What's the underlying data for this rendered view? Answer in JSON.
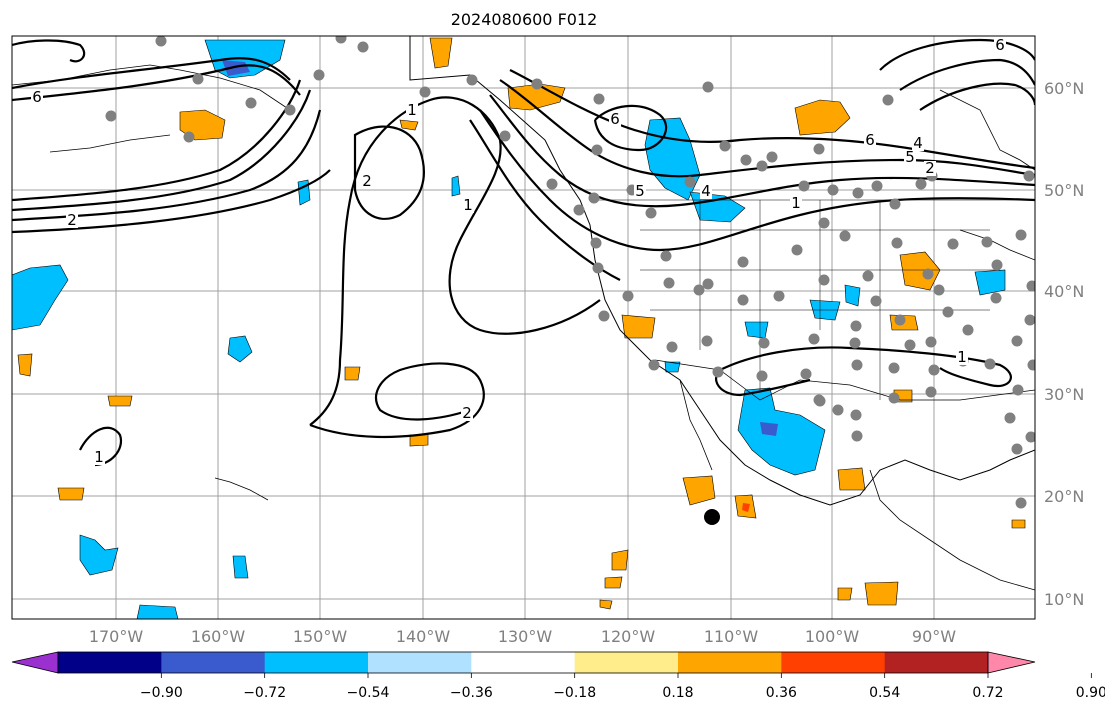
{
  "map": {
    "title": "2024080600 F012",
    "lat_labels": [
      "60°N",
      "50°N",
      "40°N",
      "30°N",
      "20°N",
      "10°N"
    ],
    "lon_labels": [
      "170°W",
      "160°W",
      "150°W",
      "140°W",
      "130°W",
      "120°W",
      "110°W",
      "100°W",
      "90°W"
    ],
    "contour_labels": [
      "6",
      "2",
      "1",
      "2",
      "1",
      "2",
      "1",
      "6",
      "5",
      "4",
      "6",
      "5",
      "4",
      "1",
      "2",
      "1",
      "6"
    ],
    "colorbar": {
      "tick_labels": [
        "−0.90",
        "−0.72",
        "−0.54",
        "−0.36",
        "−0.18",
        "0.18",
        "0.36",
        "0.54",
        "0.72",
        "0.90"
      ],
      "colors": [
        "#9b30d0",
        "#000088",
        "#3a5bcd",
        "#00bfff",
        "#b0e2ff",
        "#ffffff",
        "#ffec8b",
        "#ffa500",
        "#ff4000",
        "#b22222",
        "#ff88aa"
      ]
    },
    "marker_color": "#808080",
    "positive_color": "#ffa500",
    "negative_color": "#00bfff"
  }
}
